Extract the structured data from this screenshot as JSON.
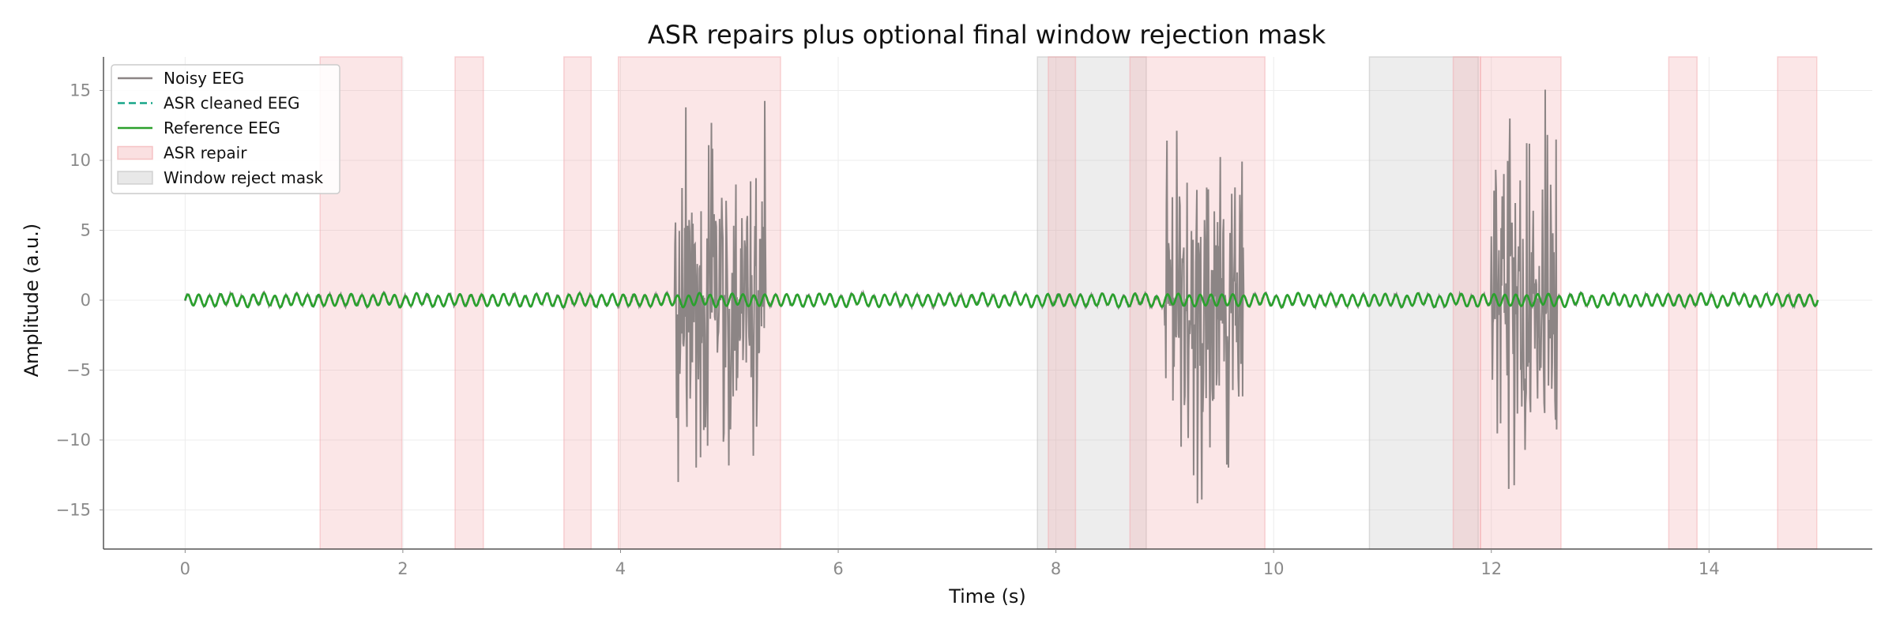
{
  "chart_data": {
    "type": "line",
    "title": "ASR repairs plus optional final window rejection mask",
    "xlabel": "Time (s)",
    "ylabel": "Amplitude (a.u.)",
    "xlim": [
      -0.75,
      15.5
    ],
    "ylim": [
      -17.8,
      17.4
    ],
    "x_ticks": [
      0,
      2,
      4,
      6,
      8,
      10,
      12,
      14
    ],
    "y_ticks": [
      -15,
      -10,
      -5,
      0,
      5,
      10,
      15
    ],
    "grid": true,
    "legend_position": "upper-left",
    "duration_s": 15,
    "reference_oscillation": {
      "frequency_hz": 10,
      "amplitude": 0.4
    },
    "series": [
      {
        "name": "Noisy EEG",
        "color": "#8c8585",
        "style": "solid",
        "artifact_bursts": [
          {
            "start": 4.5,
            "end": 5.33,
            "peak_amplitude": 14
          },
          {
            "start": 9.0,
            "end": 9.72,
            "peak_amplitude": 14.5
          },
          {
            "start": 12.0,
            "end": 12.6,
            "peak_amplitude": 16
          }
        ]
      },
      {
        "name": "ASR cleaned EEG",
        "color": "#17a589",
        "style": "dashed"
      },
      {
        "name": "Reference EEG",
        "color": "#2ca02c",
        "style": "solid"
      }
    ],
    "asr_repair": {
      "name": "ASR repair",
      "color": "#f2a5a8",
      "intervals": [
        [
          1.24,
          1.99
        ],
        [
          2.48,
          2.74
        ],
        [
          3.48,
          3.73
        ],
        [
          3.98,
          5.47
        ],
        [
          7.93,
          8.18
        ],
        [
          8.68,
          9.92
        ],
        [
          11.65,
          11.9
        ],
        [
          11.9,
          12.64
        ],
        [
          13.63,
          13.89
        ],
        [
          14.63,
          14.99
        ]
      ]
    },
    "window_reject_mask": {
      "name": "Window reject mask",
      "color": "#bdbdbd",
      "intervals": [
        [
          7.83,
          8.83
        ],
        [
          10.88,
          11.88
        ]
      ]
    }
  }
}
